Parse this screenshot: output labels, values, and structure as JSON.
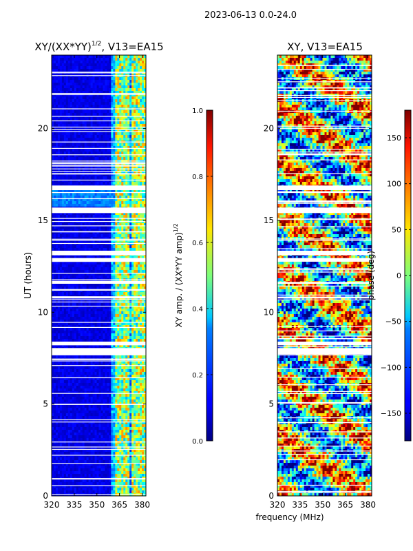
{
  "suptitle": "2023-06-13 0.0-24.0",
  "chart_data": [
    {
      "type": "heatmap",
      "title_main": "XY/(XX*YY)",
      "title_sup": "1/2",
      "title_tail": ", V13=EA15",
      "xlabel": "",
      "ylabel": "UT (hours)",
      "xlim": [
        320,
        382.5
      ],
      "ylim": [
        0,
        24
      ],
      "xticks": [
        320,
        335,
        350,
        365,
        380
      ],
      "yticks": [
        0,
        5,
        10,
        15,
        20
      ],
      "colorbar": {
        "label_main": "XY amp. / (XX*YY amp)",
        "label_sup": "1/2",
        "range": [
          0.0,
          1.0
        ],
        "ticks": [
          "0.0",
          "0.2",
          "0.4",
          "0.6",
          "0.8",
          "1.0"
        ],
        "tick_values": [
          0.0,
          0.2,
          0.4,
          0.6,
          0.8,
          1.0
        ],
        "cmap": "jet"
      },
      "flagged_bands_hours": [
        [
          7.7,
          8.05
        ],
        [
          8.2,
          8.4
        ],
        [
          12.75,
          12.95
        ],
        [
          13.1,
          13.35
        ],
        [
          15.4,
          15.7
        ],
        [
          16.65,
          16.9
        ],
        [
          10.75,
          10.85
        ],
        [
          11.55,
          11.65
        ]
      ]
    },
    {
      "type": "heatmap",
      "title": "XY, V13=EA15",
      "xlabel": "frequency (MHz)",
      "ylabel": "",
      "xlim": [
        320,
        382.5
      ],
      "ylim": [
        0,
        24
      ],
      "xticks": [
        320,
        335,
        350,
        365,
        380
      ],
      "yticks": [
        0,
        5,
        10,
        15,
        20
      ],
      "colorbar": {
        "label": "phase (deg)",
        "range": [
          -180,
          180
        ],
        "ticks": [
          "150",
          "100",
          "50",
          "0",
          "−50",
          "−100",
          "−150"
        ],
        "tick_values": [
          150,
          100,
          50,
          0,
          -50,
          -100,
          -150
        ],
        "cmap": "jet"
      },
      "flagged_bands_hours": [
        [
          7.7,
          8.05
        ],
        [
          8.2,
          8.4
        ],
        [
          12.75,
          12.95
        ],
        [
          13.1,
          13.35
        ],
        [
          15.4,
          15.7
        ],
        [
          16.65,
          16.9
        ],
        [
          10.75,
          10.85
        ],
        [
          11.55,
          11.65
        ]
      ]
    }
  ]
}
